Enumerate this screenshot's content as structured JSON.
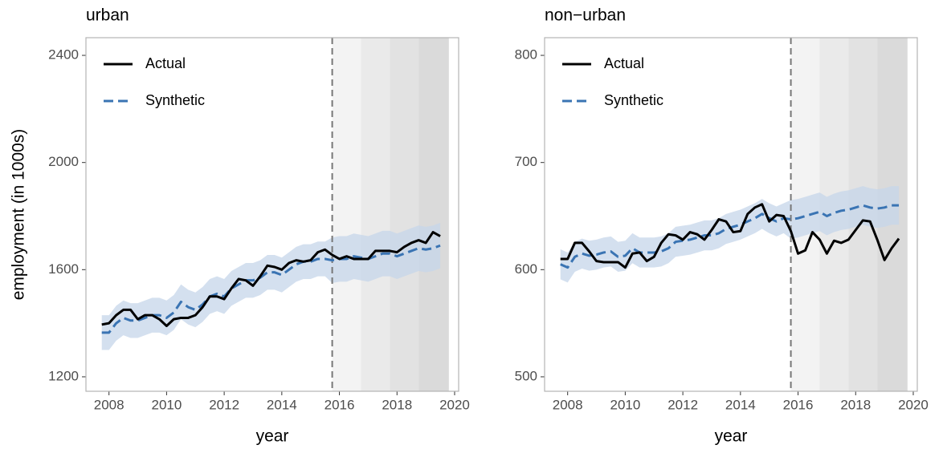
{
  "chart_data": [
    {
      "type": "line",
      "title": "urban",
      "xlabel": "year",
      "ylabel": "employment (in 1000s)",
      "x": [
        2007.75,
        2008,
        2008.25,
        2008.5,
        2008.75,
        2009,
        2009.25,
        2009.5,
        2009.75,
        2010,
        2010.25,
        2010.5,
        2010.75,
        2011,
        2011.25,
        2011.5,
        2011.75,
        2012,
        2012.25,
        2012.5,
        2012.75,
        2013,
        2013.25,
        2013.5,
        2013.75,
        2014,
        2014.25,
        2014.5,
        2014.75,
        2015,
        2015.25,
        2015.5,
        2015.75,
        2016,
        2016.25,
        2016.5,
        2016.75,
        2017,
        2017.25,
        2017.5,
        2017.75,
        2018,
        2018.25,
        2018.5,
        2018.75,
        2019,
        2019.25,
        2019.5
      ],
      "series": [
        {
          "name": "Actual",
          "color": "#000000",
          "values": [
            1395,
            1400,
            1430,
            1450,
            1450,
            1415,
            1430,
            1430,
            1415,
            1390,
            1415,
            1420,
            1420,
            1430,
            1460,
            1500,
            1500,
            1490,
            1530,
            1565,
            1560,
            1540,
            1575,
            1615,
            1610,
            1600,
            1625,
            1635,
            1630,
            1635,
            1665,
            1675,
            1655,
            1640,
            1650,
            1640,
            1640,
            1640,
            1670,
            1670,
            1670,
            1665,
            1685,
            1700,
            1710,
            1700,
            1740,
            1725
          ]
        },
        {
          "name": "Synthetic",
          "color": "#3a74b3",
          "dashed": true,
          "band_color": "#c6d6ea",
          "values": [
            1365,
            1365,
            1400,
            1420,
            1410,
            1410,
            1420,
            1430,
            1430,
            1420,
            1440,
            1480,
            1460,
            1450,
            1470,
            1500,
            1510,
            1500,
            1530,
            1545,
            1560,
            1560,
            1570,
            1590,
            1590,
            1580,
            1600,
            1620,
            1630,
            1630,
            1640,
            1640,
            1635,
            1640,
            1640,
            1650,
            1645,
            1640,
            1650,
            1660,
            1660,
            1650,
            1660,
            1670,
            1680,
            1675,
            1680,
            1690
          ],
          "lower": [
            1300,
            1300,
            1335,
            1355,
            1345,
            1345,
            1355,
            1365,
            1365,
            1355,
            1375,
            1415,
            1395,
            1385,
            1405,
            1435,
            1445,
            1435,
            1465,
            1480,
            1495,
            1495,
            1505,
            1525,
            1525,
            1515,
            1535,
            1555,
            1565,
            1565,
            1575,
            1575,
            1550,
            1555,
            1555,
            1565,
            1560,
            1555,
            1565,
            1575,
            1575,
            1565,
            1575,
            1585,
            1595,
            1590,
            1595,
            1605
          ],
          "upper": [
            1430,
            1430,
            1465,
            1485,
            1475,
            1475,
            1485,
            1495,
            1495,
            1485,
            1505,
            1545,
            1525,
            1515,
            1535,
            1565,
            1575,
            1565,
            1595,
            1610,
            1625,
            1625,
            1635,
            1655,
            1655,
            1645,
            1665,
            1685,
            1695,
            1695,
            1705,
            1705,
            1720,
            1725,
            1725,
            1735,
            1730,
            1725,
            1735,
            1745,
            1745,
            1735,
            1745,
            1755,
            1765,
            1760,
            1765,
            1775
          ]
        }
      ],
      "vline": 2015.75,
      "shade_regions": [
        {
          "range": [
            2015.75,
            2016.75
          ],
          "color": "#f3f3f3"
        },
        {
          "range": [
            2016.75,
            2017.75
          ],
          "color": "#eaeaea"
        },
        {
          "range": [
            2017.75,
            2018.75
          ],
          "color": "#e2e2e2"
        },
        {
          "range": [
            2018.75,
            2019.8
          ],
          "color": "#dadada"
        }
      ],
      "xlim": [
        2007.2,
        2020.14
      ],
      "xticks": [
        2008,
        2010,
        2012,
        2014,
        2016,
        2018,
        2020
      ],
      "ylim": [
        1146,
        2466
      ],
      "yticks": [
        1200,
        1600,
        2000,
        2400
      ],
      "legend": "top-left"
    },
    {
      "type": "line",
      "title": "non−urban",
      "xlabel": "year",
      "x": [
        2007.75,
        2008,
        2008.25,
        2008.5,
        2008.75,
        2009,
        2009.25,
        2009.5,
        2009.75,
        2010,
        2010.25,
        2010.5,
        2010.75,
        2011,
        2011.25,
        2011.5,
        2011.75,
        2012,
        2012.25,
        2012.5,
        2012.75,
        2013,
        2013.25,
        2013.5,
        2013.75,
        2014,
        2014.25,
        2014.5,
        2014.75,
        2015,
        2015.25,
        2015.5,
        2015.75,
        2016,
        2016.25,
        2016.5,
        2016.75,
        2017,
        2017.25,
        2017.5,
        2017.75,
        2018,
        2018.25,
        2018.5,
        2018.75,
        2019,
        2019.25,
        2019.5
      ],
      "series": [
        {
          "name": "Actual",
          "color": "#000000",
          "values": [
            610,
            610,
            625,
            625,
            617,
            608,
            607,
            607,
            607,
            602,
            615,
            616,
            608,
            612,
            625,
            633,
            632,
            628,
            635,
            633,
            628,
            637,
            647,
            645,
            635,
            636,
            652,
            658,
            661,
            645,
            651,
            650,
            636,
            615,
            618,
            635,
            628,
            615,
            627,
            625,
            628,
            637,
            646,
            645,
            628,
            609,
            620,
            629
          ]
        },
        {
          "name": "Synthetic",
          "color": "#3a74b3",
          "dashed": true,
          "band_color": "#c6d6ea",
          "values": [
            605,
            602,
            612,
            615,
            613,
            614,
            616,
            617,
            612,
            613,
            620,
            616,
            616,
            616,
            617,
            620,
            626,
            627,
            628,
            630,
            632,
            632,
            634,
            638,
            640,
            642,
            645,
            648,
            652,
            648,
            645,
            648,
            647,
            648,
            650,
            652,
            654,
            650,
            653,
            655,
            656,
            658,
            660,
            658,
            657,
            658,
            660,
            660
          ],
          "lower": [
            591,
            588,
            598,
            601,
            599,
            600,
            602,
            603,
            598,
            599,
            606,
            602,
            602,
            602,
            603,
            606,
            612,
            613,
            614,
            616,
            618,
            618,
            620,
            624,
            626,
            628,
            631,
            634,
            638,
            634,
            631,
            634,
            629,
            630,
            632,
            634,
            636,
            632,
            635,
            637,
            638,
            640,
            642,
            640,
            639,
            640,
            642,
            642
          ],
          "upper": [
            619,
            616,
            626,
            629,
            627,
            628,
            630,
            631,
            626,
            627,
            634,
            630,
            630,
            630,
            631,
            634,
            640,
            641,
            642,
            644,
            646,
            646,
            648,
            652,
            654,
            656,
            659,
            662,
            666,
            662,
            659,
            662,
            665,
            666,
            668,
            670,
            672,
            668,
            671,
            673,
            674,
            676,
            678,
            676,
            675,
            676,
            678,
            678
          ]
        }
      ],
      "vline": 2015.75,
      "shade_regions": [
        {
          "range": [
            2015.75,
            2016.75
          ],
          "color": "#f3f3f3"
        },
        {
          "range": [
            2016.75,
            2017.75
          ],
          "color": "#eaeaea"
        },
        {
          "range": [
            2017.75,
            2018.75
          ],
          "color": "#e2e2e2"
        },
        {
          "range": [
            2018.75,
            2019.8
          ],
          "color": "#dadada"
        }
      ],
      "xlim": [
        2007.2,
        2020.14
      ],
      "xticks": [
        2008,
        2010,
        2012,
        2014,
        2016,
        2018,
        2020
      ],
      "ylim": [
        486.5,
        816.5
      ],
      "yticks": [
        500,
        600,
        700,
        800
      ],
      "legend": "top-left"
    }
  ]
}
